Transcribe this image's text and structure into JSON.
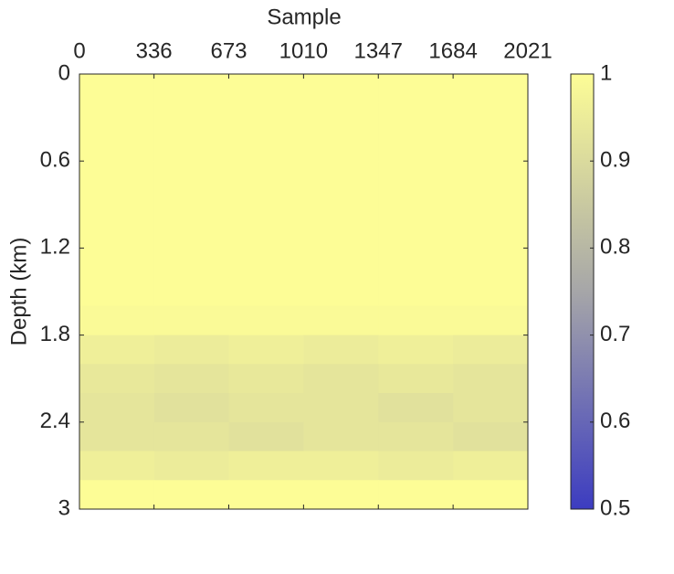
{
  "chart_data": {
    "type": "heatmap",
    "xlabel": "Sample",
    "ylabel": "Depth (km)",
    "xlim": [
      0,
      2021
    ],
    "xticks": [
      0,
      336,
      673,
      1010,
      1347,
      1684,
      2021
    ],
    "ylim": [
      0,
      3
    ],
    "yticks": [
      0,
      0.6,
      1.2,
      1.8,
      2.4,
      3
    ],
    "clim": [
      0.5,
      1
    ],
    "cticks": [
      0.5,
      0.6,
      0.7,
      0.8,
      0.9,
      1
    ],
    "colormap": [
      "#3c3cc0",
      "#a6a6a8",
      "#fdfd96"
    ],
    "values": [
      [
        1,
        1,
        1,
        1,
        1,
        1
      ],
      [
        1,
        1,
        1,
        1,
        1,
        1
      ],
      [
        1,
        1,
        1,
        1,
        1,
        1
      ],
      [
        1,
        1,
        1,
        1,
        1,
        1
      ],
      [
        1,
        1,
        1,
        1,
        1,
        1
      ],
      [
        1,
        1,
        1,
        1,
        1,
        1
      ],
      [
        1,
        1,
        1,
        1,
        1,
        1
      ],
      [
        1,
        1,
        1,
        1,
        1,
        1
      ],
      [
        0.99,
        0.99,
        0.99,
        0.99,
        0.99,
        0.99
      ],
      [
        0.96,
        0.95,
        0.96,
        0.95,
        0.96,
        0.95
      ],
      [
        0.94,
        0.93,
        0.94,
        0.93,
        0.94,
        0.93
      ],
      [
        0.93,
        0.92,
        0.93,
        0.93,
        0.92,
        0.93
      ],
      [
        0.93,
        0.93,
        0.92,
        0.93,
        0.93,
        0.92
      ],
      [
        0.96,
        0.95,
        0.96,
        0.96,
        0.95,
        0.96
      ],
      [
        1,
        1,
        1,
        1,
        1,
        1
      ]
    ]
  }
}
